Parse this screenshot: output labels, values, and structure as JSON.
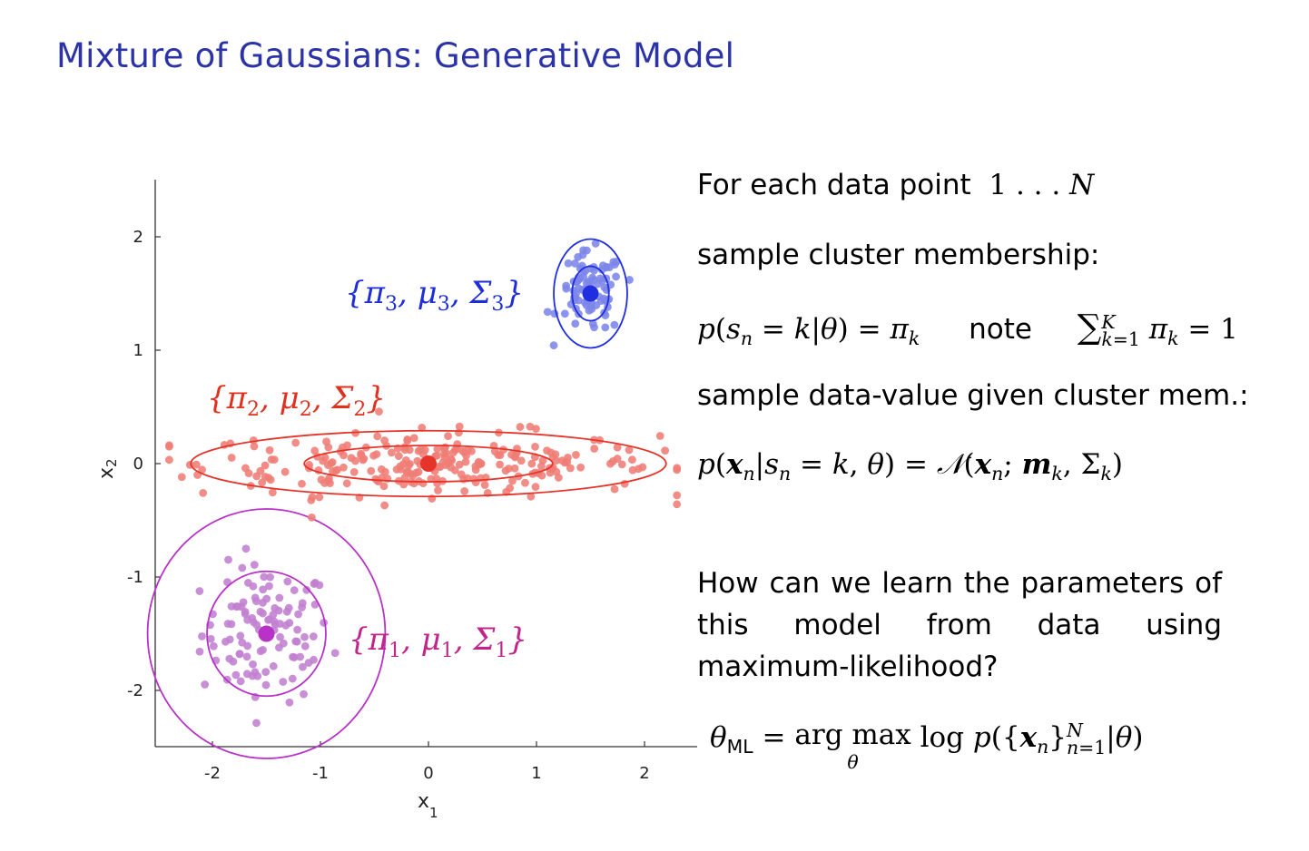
{
  "slide": {
    "title": "Mixture of Gaussians: Generative Model"
  },
  "colors": {
    "title": "#2b33a6",
    "cluster1": "#b832c8",
    "cluster1_points": "#c27fd0",
    "cluster2": "#e5352b",
    "cluster2_points": "#ef7d75",
    "cluster3": "#1f2fe0",
    "cluster3_points": "#7c86e8",
    "label1": "#c2248a",
    "label2": "#e0301e",
    "label3": "#1d2ed8"
  },
  "chart_data": {
    "type": "scatter",
    "xlabel": "x",
    "xlabel_sub": "1",
    "ylabel": "x",
    "ylabel_sub": "2",
    "xlim": [
      -2.5,
      2.5
    ],
    "ylim": [
      -2.5,
      2.5
    ],
    "xticks": [
      "-2",
      "-1",
      "0",
      "1",
      "2"
    ],
    "yticks": [
      "2",
      "1",
      "0",
      "-1",
      "-2"
    ],
    "xtick_values": [
      -2,
      -1,
      0,
      1,
      2
    ],
    "ytick_values": [
      2,
      1,
      0,
      -1,
      -2
    ],
    "clusters": [
      {
        "label_parts": [
          "{π",
          "1",
          ", μ",
          "1",
          ", Σ",
          "1",
          "}"
        ],
        "mean": [
          -1.5,
          -1.5
        ],
        "sd": [
          0.3,
          0.3
        ],
        "count": 110,
        "contours": [
          [
            0.55,
            0.55
          ],
          [
            1.1,
            1.1
          ]
        ]
      },
      {
        "label_parts": [
          "{π",
          "2",
          ", μ",
          "2",
          ", Σ",
          "2",
          "}"
        ],
        "mean": [
          0.0,
          0.0
        ],
        "sd": [
          1.05,
          0.14
        ],
        "count": 260,
        "contours": [
          [
            1.15,
            0.16
          ],
          [
            2.2,
            0.29
          ]
        ]
      },
      {
        "label_parts": [
          "{π",
          "3",
          ", μ",
          "3",
          ", Σ",
          "3",
          "}"
        ],
        "mean": [
          1.5,
          1.5
        ],
        "sd": [
          0.15,
          0.18
        ],
        "count": 90,
        "contours": [
          [
            0.17,
            0.24
          ],
          [
            0.34,
            0.48
          ]
        ]
      }
    ]
  },
  "text": {
    "line1": "For each data point",
    "line1_math": "1 . . . N",
    "line2": "sample cluster membership:",
    "line3_note": "note",
    "line4": "sample data-value given cluster mem.:",
    "question": "How can we learn the parameters of this model from data using maximum-likelihood?",
    "ml_sub": "ML",
    "ml_underset": "θ"
  }
}
